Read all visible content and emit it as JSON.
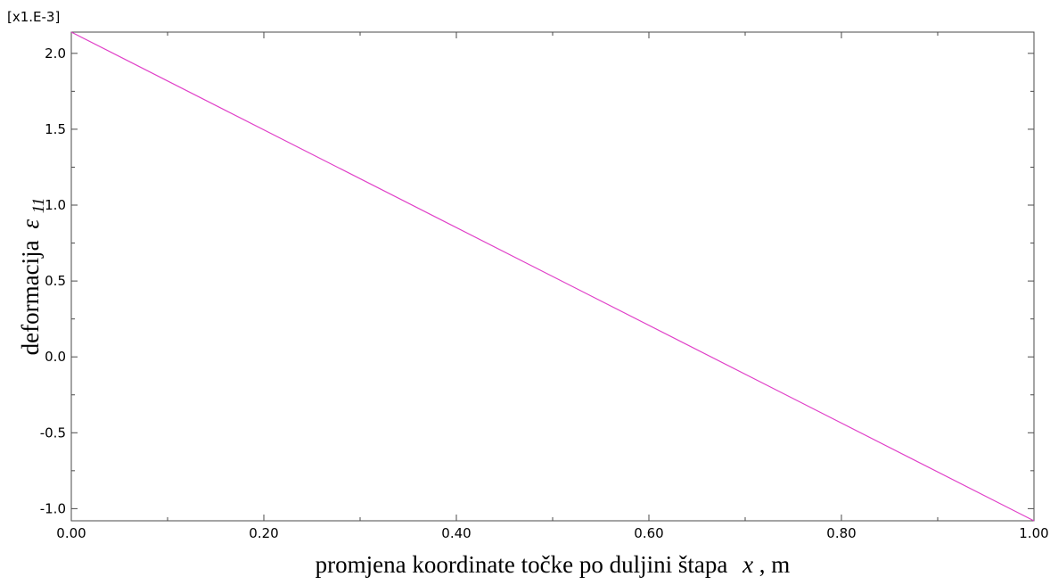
{
  "chart_data": {
    "type": "line",
    "x_unit_label": "",
    "y_multiplier": "[x1.E-3]",
    "xlabel": {
      "main": "promjena koordinate točke po duljini štapa",
      "var": "x",
      "unit": ", m"
    },
    "ylabel": {
      "main": "deformacija",
      "var": "ε",
      "sub": "11"
    },
    "xlim": [
      0.0,
      1.0
    ],
    "ylim": [
      -1.08,
      2.14
    ],
    "x_ticks": [
      0.0,
      0.2,
      0.4,
      0.6,
      0.8,
      1.0
    ],
    "x_tick_labels": [
      "0.00",
      "0.20",
      "0.40",
      "0.60",
      "0.80",
      "1.00"
    ],
    "y_ticks": [
      -1.0,
      -0.5,
      0.0,
      0.5,
      1.0,
      1.5,
      2.0
    ],
    "y_tick_labels": [
      "-1.0",
      "-0.5",
      "0.0",
      "0.5",
      "1.0",
      "1.5",
      "2.0"
    ],
    "grid": false,
    "series": [
      {
        "color": "#e040c8",
        "x": [
          0.0,
          1.0
        ],
        "y": [
          2.14,
          -1.08
        ]
      }
    ]
  }
}
